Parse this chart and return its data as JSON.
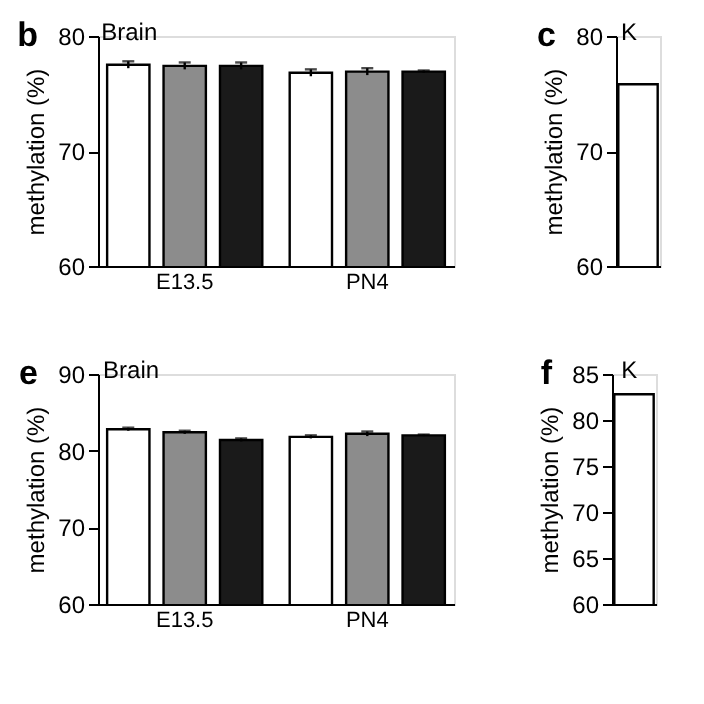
{
  "chart_data": [
    {
      "type": "bar",
      "title": "Brain",
      "annotations": [
        "b"
      ],
      "ylabel": "methylation (%)",
      "categories": [
        "E13.5",
        "PN4"
      ],
      "series": [
        {
          "color": "#ffffff",
          "values": [
            77.5,
            76.8
          ],
          "errors": [
            0.3,
            0.3
          ]
        },
        {
          "color": "#8c8c8c",
          "values": [
            77.4,
            76.9
          ],
          "errors": [
            0.3,
            0.3
          ]
        },
        {
          "color": "#1a1a1a",
          "values": [
            77.4,
            76.9
          ],
          "errors": [
            0.3,
            0.1
          ]
        }
      ],
      "ylim": [
        60,
        80
      ],
      "yticks": [
        60,
        70,
        80
      ],
      "grid": false
    },
    {
      "type": "bar",
      "title": "K",
      "annotations": [
        "c"
      ],
      "ylabel": "methylation (%)",
      "categories": [
        null
      ],
      "series": [
        {
          "color": "#ffffff",
          "values": [
            75.8
          ]
        }
      ],
      "ylim": [
        60,
        80
      ],
      "yticks": [
        60,
        70,
        80
      ],
      "grid": false
    },
    {
      "type": "bar",
      "title": "Brain",
      "annotations": [
        "e"
      ],
      "ylabel": "methylation (%)",
      "categories": [
        "E13.5",
        "PN4"
      ],
      "series": [
        {
          "color": "#ffffff",
          "values": [
            82.8,
            81.8
          ],
          "errors": [
            0.2,
            0.2
          ]
        },
        {
          "color": "#8c8c8c",
          "values": [
            82.4,
            82.2
          ],
          "errors": [
            0.2,
            0.3
          ]
        },
        {
          "color": "#1a1a1a",
          "values": [
            81.4,
            82.0
          ],
          "errors": [
            0.2,
            0.1
          ]
        }
      ],
      "ylim": [
        60,
        90
      ],
      "yticks": [
        60,
        70,
        80,
        90
      ],
      "grid": false
    },
    {
      "type": "bar",
      "title": "K",
      "annotations": [
        "f"
      ],
      "ylabel": "methylation (%)",
      "categories": [
        null
      ],
      "series": [
        {
          "color": "#ffffff",
          "values": [
            82.8
          ]
        }
      ],
      "ylim": [
        60,
        85
      ],
      "yticks": [
        60,
        65,
        70,
        75,
        80,
        85
      ],
      "grid": false
    }
  ]
}
